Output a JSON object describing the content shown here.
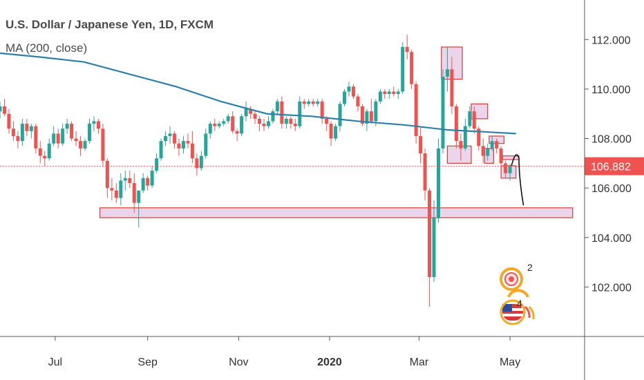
{
  "header": {
    "title": "U.S. Dollar / Japanese Yen, 1D, FXCM",
    "indicator_label": "MA (200, close)"
  },
  "colors": {
    "up": "#26a69a",
    "down": "#ef5350",
    "ma": "#2e7fa8",
    "zone_fill": "#e4c7e3",
    "zone_stroke": "#d63a3a",
    "current_price": "#ef5350",
    "axis": "#555555"
  },
  "badge": {
    "icon": "usd-jpy-flag-badge",
    "numbers": [
      "2",
      "4"
    ]
  },
  "chart_data": {
    "type": "candlestick",
    "title": "U.S. Dollar / Japanese Yen, 1D, FXCM",
    "x_ticks": [
      {
        "label": "Jul",
        "date": "2019-07-01",
        "bold": false
      },
      {
        "label": "Sep",
        "date": "2019-09-01",
        "bold": false
      },
      {
        "label": "Nov",
        "date": "2019-11-01",
        "bold": false
      },
      {
        "label": "2020",
        "date": "2020-01-01",
        "bold": true
      },
      {
        "label": "Mar",
        "date": "2020-03-01",
        "bold": false
      },
      {
        "label": "May",
        "date": "2020-05-01",
        "bold": false
      }
    ],
    "y_ticks": [
      "112.000",
      "110.000",
      "108.000",
      "106.000",
      "104.000",
      "102.000"
    ],
    "ylim": [
      100.0,
      113.6
    ],
    "xlim": [
      "2019-05-25",
      "2020-06-20"
    ],
    "grid": false,
    "current_price": {
      "value": 106.882,
      "label": "106.882"
    },
    "candles": [
      [
        "2019-05-25",
        109.1,
        109.5,
        108.8,
        109.3
      ],
      [
        "2019-05-28",
        109.3,
        109.6,
        108.9,
        109.0
      ],
      [
        "2019-05-31",
        109.0,
        109.2,
        108.2,
        108.4
      ],
      [
        "2019-06-03",
        108.4,
        108.7,
        107.9,
        108.1
      ],
      [
        "2019-06-06",
        108.1,
        108.3,
        107.6,
        107.9
      ],
      [
        "2019-06-09",
        107.9,
        108.8,
        107.7,
        108.6
      ],
      [
        "2019-06-12",
        108.6,
        108.8,
        108.1,
        108.3
      ],
      [
        "2019-06-15",
        108.3,
        108.6,
        108.0,
        108.5
      ],
      [
        "2019-06-18",
        108.5,
        108.6,
        107.4,
        107.6
      ],
      [
        "2019-06-21",
        107.6,
        107.9,
        107.0,
        107.3
      ],
      [
        "2019-06-24",
        107.3,
        107.5,
        106.9,
        107.2
      ],
      [
        "2019-06-27",
        107.2,
        108.0,
        107.1,
        107.8
      ],
      [
        "2019-06-30",
        107.8,
        108.5,
        107.7,
        108.2
      ],
      [
        "2019-07-03",
        108.2,
        108.4,
        107.6,
        107.8
      ],
      [
        "2019-07-06",
        107.8,
        108.6,
        107.7,
        108.4
      ],
      [
        "2019-07-09",
        108.4,
        108.8,
        108.2,
        108.6
      ],
      [
        "2019-07-12",
        108.6,
        108.7,
        107.9,
        108.0
      ],
      [
        "2019-07-15",
        108.0,
        108.3,
        107.7,
        107.9
      ],
      [
        "2019-07-18",
        107.9,
        108.1,
        107.3,
        107.6
      ],
      [
        "2019-07-21",
        107.6,
        108.0,
        107.5,
        107.9
      ],
      [
        "2019-07-24",
        107.9,
        108.8,
        107.8,
        108.6
      ],
      [
        "2019-07-27",
        108.6,
        108.9,
        108.3,
        108.7
      ],
      [
        "2019-07-30",
        108.7,
        108.8,
        108.2,
        108.4
      ],
      [
        "2019-08-02",
        108.4,
        108.6,
        106.9,
        107.1
      ],
      [
        "2019-08-05",
        107.1,
        107.2,
        105.6,
        106.0
      ],
      [
        "2019-08-08",
        106.0,
        106.4,
        105.5,
        105.9
      ],
      [
        "2019-08-11",
        105.9,
        106.2,
        105.4,
        105.6
      ],
      [
        "2019-08-14",
        105.6,
        106.6,
        105.3,
        106.3
      ],
      [
        "2019-08-17",
        106.3,
        106.7,
        105.9,
        106.4
      ],
      [
        "2019-08-20",
        106.4,
        106.7,
        106.0,
        106.2
      ],
      [
        "2019-08-23",
        106.2,
        106.6,
        105.0,
        105.4
      ],
      [
        "2019-08-26",
        105.4,
        105.8,
        104.4,
        105.9
      ],
      [
        "2019-08-29",
        105.9,
        106.6,
        105.8,
        106.4
      ],
      [
        "2019-09-01",
        106.4,
        106.5,
        105.9,
        106.1
      ],
      [
        "2019-09-04",
        106.1,
        106.9,
        106.0,
        106.7
      ],
      [
        "2019-09-07",
        106.7,
        107.4,
        106.6,
        107.2
      ],
      [
        "2019-09-10",
        107.2,
        108.0,
        107.1,
        107.9
      ],
      [
        "2019-09-13",
        107.9,
        108.3,
        107.7,
        108.1
      ],
      [
        "2019-09-16",
        108.1,
        108.5,
        107.8,
        108.2
      ],
      [
        "2019-09-19",
        108.2,
        108.3,
        107.6,
        107.8
      ],
      [
        "2019-09-22",
        107.8,
        108.0,
        107.3,
        107.6
      ],
      [
        "2019-09-25",
        107.6,
        108.1,
        107.4,
        107.9
      ],
      [
        "2019-09-28",
        107.9,
        108.2,
        107.6,
        107.8
      ],
      [
        "2019-10-01",
        107.8,
        108.3,
        107.0,
        107.2
      ],
      [
        "2019-10-04",
        107.2,
        107.4,
        106.5,
        106.8
      ],
      [
        "2019-10-07",
        106.8,
        107.5,
        106.7,
        107.3
      ],
      [
        "2019-10-10",
        107.3,
        108.4,
        107.2,
        108.2
      ],
      [
        "2019-10-13",
        108.2,
        108.7,
        108.0,
        108.6
      ],
      [
        "2019-10-16",
        108.6,
        108.8,
        108.3,
        108.5
      ],
      [
        "2019-10-19",
        108.5,
        108.7,
        108.4,
        108.6
      ],
      [
        "2019-10-22",
        108.6,
        108.8,
        108.5,
        108.7
      ],
      [
        "2019-10-25",
        108.7,
        109.0,
        108.6,
        108.9
      ],
      [
        "2019-10-28",
        108.9,
        109.1,
        108.2,
        108.3
      ],
      [
        "2019-10-31",
        108.3,
        108.4,
        107.9,
        108.2
      ],
      [
        "2019-11-03",
        108.2,
        109.0,
        108.1,
        108.9
      ],
      [
        "2019-11-06",
        108.9,
        109.5,
        108.7,
        109.2
      ],
      [
        "2019-11-09",
        109.2,
        109.3,
        108.8,
        109.0
      ],
      [
        "2019-11-12",
        109.0,
        109.1,
        108.6,
        108.8
      ],
      [
        "2019-11-15",
        108.8,
        108.9,
        108.3,
        108.6
      ],
      [
        "2019-11-18",
        108.6,
        108.8,
        108.3,
        108.5
      ],
      [
        "2019-11-21",
        108.5,
        108.9,
        108.4,
        108.7
      ],
      [
        "2019-11-24",
        108.7,
        109.2,
        108.6,
        109.1
      ],
      [
        "2019-11-27",
        109.1,
        109.6,
        109.0,
        109.5
      ],
      [
        "2019-11-30",
        109.5,
        109.7,
        108.4,
        108.6
      ],
      [
        "2019-12-03",
        108.6,
        108.9,
        108.4,
        108.8
      ],
      [
        "2019-12-06",
        108.8,
        108.9,
        108.4,
        108.6
      ],
      [
        "2019-12-09",
        108.6,
        108.8,
        108.3,
        108.5
      ],
      [
        "2019-12-12",
        108.5,
        109.7,
        108.4,
        109.5
      ],
      [
        "2019-12-15",
        109.5,
        109.6,
        109.2,
        109.4
      ],
      [
        "2019-12-18",
        109.4,
        109.6,
        109.3,
        109.5
      ],
      [
        "2019-12-21",
        109.5,
        109.6,
        109.3,
        109.4
      ],
      [
        "2019-12-24",
        109.4,
        109.6,
        109.3,
        109.5
      ],
      [
        "2019-12-27",
        109.5,
        109.6,
        108.6,
        108.8
      ],
      [
        "2019-12-30",
        108.8,
        108.9,
        108.3,
        108.6
      ],
      [
        "2020-01-02",
        108.6,
        108.7,
        107.7,
        108.0
      ],
      [
        "2020-01-05",
        108.0,
        108.6,
        107.9,
        108.5
      ],
      [
        "2020-01-08",
        108.5,
        109.5,
        108.3,
        109.4
      ],
      [
        "2020-01-11",
        109.4,
        110.0,
        109.3,
        109.9
      ],
      [
        "2020-01-14",
        109.9,
        110.3,
        109.7,
        110.1
      ],
      [
        "2020-01-17",
        110.1,
        110.2,
        109.6,
        109.7
      ],
      [
        "2020-01-20",
        109.7,
        109.8,
        109.1,
        109.3
      ],
      [
        "2020-01-23",
        109.3,
        109.4,
        108.5,
        108.6
      ],
      [
        "2020-01-26",
        108.6,
        109.2,
        108.3,
        109.1
      ],
      [
        "2020-01-29",
        109.1,
        109.6,
        108.6,
        108.7
      ],
      [
        "2020-02-01",
        108.7,
        109.6,
        108.5,
        109.5
      ],
      [
        "2020-02-04",
        109.5,
        110.0,
        109.4,
        109.9
      ],
      [
        "2020-02-07",
        109.9,
        110.0,
        109.6,
        109.8
      ],
      [
        "2020-02-10",
        109.8,
        110.0,
        109.6,
        109.9
      ],
      [
        "2020-02-13",
        109.9,
        110.1,
        109.7,
        109.8
      ],
      [
        "2020-02-16",
        109.8,
        110.0,
        109.6,
        109.9
      ],
      [
        "2020-02-19",
        109.9,
        111.9,
        109.8,
        111.7
      ],
      [
        "2020-02-22",
        111.7,
        112.2,
        111.2,
        111.5
      ],
      [
        "2020-02-25",
        111.5,
        111.6,
        110.0,
        110.2
      ],
      [
        "2020-02-28",
        110.2,
        110.3,
        107.8,
        108.1
      ],
      [
        "2020-03-02",
        108.1,
        108.5,
        107.0,
        107.4
      ],
      [
        "2020-03-05",
        107.4,
        107.6,
        105.5,
        105.9
      ],
      [
        "2020-03-08",
        105.9,
        106.0,
        101.2,
        102.4
      ],
      [
        "2020-03-11",
        102.4,
        105.5,
        102.2,
        104.8
      ],
      [
        "2020-03-14",
        104.8,
        108.0,
        104.6,
        107.6
      ],
      [
        "2020-03-17",
        107.6,
        110.8,
        107.4,
        110.5
      ],
      [
        "2020-03-20",
        110.5,
        111.7,
        109.9,
        110.8
      ],
      [
        "2020-03-23",
        110.8,
        111.3,
        109.0,
        109.3
      ],
      [
        "2020-03-26",
        109.3,
        109.4,
        107.6,
        107.9
      ],
      [
        "2020-03-29",
        107.9,
        108.2,
        107.1,
        107.6
      ],
      [
        "2020-04-01",
        107.6,
        108.8,
        107.5,
        108.5
      ],
      [
        "2020-04-04",
        108.5,
        109.3,
        108.4,
        109.1
      ],
      [
        "2020-04-07",
        109.1,
        109.3,
        108.2,
        108.4
      ],
      [
        "2020-04-10",
        108.4,
        108.5,
        107.5,
        107.7
      ],
      [
        "2020-04-13",
        107.7,
        108.0,
        107.0,
        107.3
      ],
      [
        "2020-04-16",
        107.3,
        107.8,
        107.1,
        107.6
      ],
      [
        "2020-04-19",
        107.6,
        108.1,
        107.5,
        107.9
      ],
      [
        "2020-04-22",
        107.9,
        108.0,
        107.4,
        107.6
      ],
      [
        "2020-04-25",
        107.6,
        107.7,
        106.8,
        107.0
      ],
      [
        "2020-04-28",
        107.0,
        107.1,
        106.4,
        106.6
      ],
      [
        "2020-05-01",
        106.6,
        107.0,
        106.3,
        106.9
      ]
    ],
    "ma200": [
      [
        "2019-05-25",
        111.45
      ],
      [
        "2019-06-20",
        111.3
      ],
      [
        "2019-07-20",
        111.1
      ],
      [
        "2019-08-20",
        110.6
      ],
      [
        "2019-09-20",
        110.1
      ],
      [
        "2019-10-20",
        109.5
      ],
      [
        "2019-11-20",
        109.0
      ],
      [
        "2019-12-20",
        108.9
      ],
      [
        "2020-01-20",
        108.7
      ],
      [
        "2020-02-20",
        108.55
      ],
      [
        "2020-03-20",
        108.35
      ],
      [
        "2020-04-20",
        108.25
      ],
      [
        "2020-05-05",
        108.2
      ]
    ],
    "zones": [
      {
        "name": "major-support-zone",
        "x0": "2019-07-31",
        "x1": "2020-06-12",
        "y0": 104.8,
        "y1": 105.2
      },
      {
        "name": "march-top-zone",
        "x0": "2020-03-16",
        "x1": "2020-03-30",
        "y0": 110.4,
        "y1": 111.7
      },
      {
        "name": "april-high-zone",
        "x0": "2020-04-05",
        "x1": "2020-04-16",
        "y0": 108.8,
        "y1": 109.4
      },
      {
        "name": "april-consolidation-zone",
        "x0": "2020-03-20",
        "x1": "2020-04-05",
        "y0": 107.0,
        "y1": 107.7
      },
      {
        "name": "late-april-zone-high",
        "x0": "2020-04-17",
        "x1": "2020-04-27",
        "y0": 107.8,
        "y1": 108.1
      },
      {
        "name": "late-april-zone-mid",
        "x0": "2020-04-14",
        "x1": "2020-04-20",
        "y0": 107.0,
        "y1": 107.6
      },
      {
        "name": "resistance-line-zone",
        "x0": "2020-04-26",
        "x1": "2020-05-07",
        "y0": 107.15,
        "y1": 107.3
      },
      {
        "name": "may-low-zone",
        "x0": "2020-04-25",
        "x1": "2020-05-05",
        "y0": 106.4,
        "y1": 106.9
      }
    ],
    "projection": [
      [
        "2020-05-02",
        106.9
      ],
      [
        "2020-05-05",
        107.2
      ],
      [
        "2020-05-07",
        107.2
      ],
      [
        "2020-05-10",
        105.3
      ]
    ]
  }
}
